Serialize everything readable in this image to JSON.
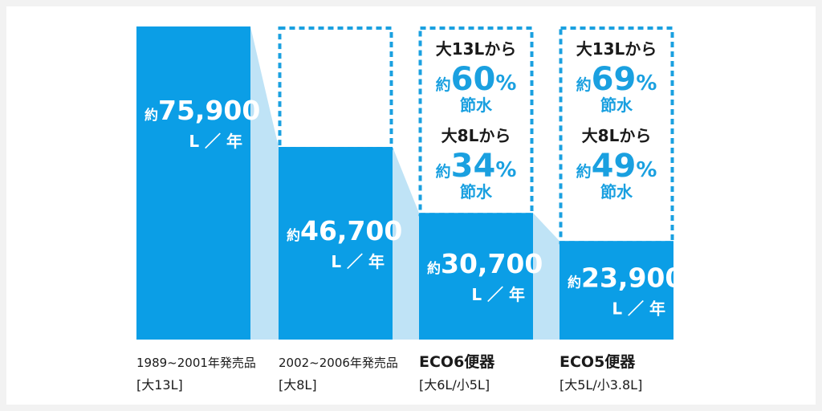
{
  "chart_data": {
    "type": "bar",
    "colors": {
      "bar": "#0b9ee6",
      "connector": "#bfe3f6",
      "dotted_border": "#1aa0e0",
      "saving_heading": "#1a1a1a",
      "saving_accent": "#1aa0e0",
      "category_text": "#1a1a1a"
    },
    "ylim": [
      0,
      75900
    ],
    "bars": [
      {
        "value": 75900,
        "value_label": "75,900",
        "prefix": "約",
        "unit": "L ／ 年",
        "category_line1": "1989~2001年発売品",
        "category_line2": "[大13L]",
        "has_frame": false,
        "savings": []
      },
      {
        "value": 46700,
        "value_label": "46,700",
        "prefix": "約",
        "unit": "L ／ 年",
        "category_line1": "2002~2006年発売品",
        "category_line2": "[大8L]",
        "has_frame": true,
        "savings": []
      },
      {
        "value": 30700,
        "value_label": "30,700",
        "prefix": "約",
        "unit": "L ／ 年",
        "category_line1": "ECO6便器",
        "category_line2": "[大6L/小5L]",
        "has_frame": true,
        "savings": [
          {
            "from": "大13Lから",
            "prefix": "約",
            "percent": "60",
            "suffix": "%",
            "label": "節水"
          },
          {
            "from": "大8Lから",
            "prefix": "約",
            "percent": "34",
            "suffix": "%",
            "label": "節水"
          }
        ]
      },
      {
        "value": 23900,
        "value_label": "23,900",
        "prefix": "約",
        "unit": "L ／ 年",
        "category_line1": "ECO5便器",
        "category_line2": "[大5L/小3.8L]",
        "has_frame": true,
        "savings": [
          {
            "from": "大13Lから",
            "prefix": "約",
            "percent": "69",
            "suffix": "%",
            "label": "節水"
          },
          {
            "from": "大8Lから",
            "prefix": "約",
            "percent": "49",
            "suffix": "%",
            "label": "節水"
          }
        ]
      }
    ]
  }
}
